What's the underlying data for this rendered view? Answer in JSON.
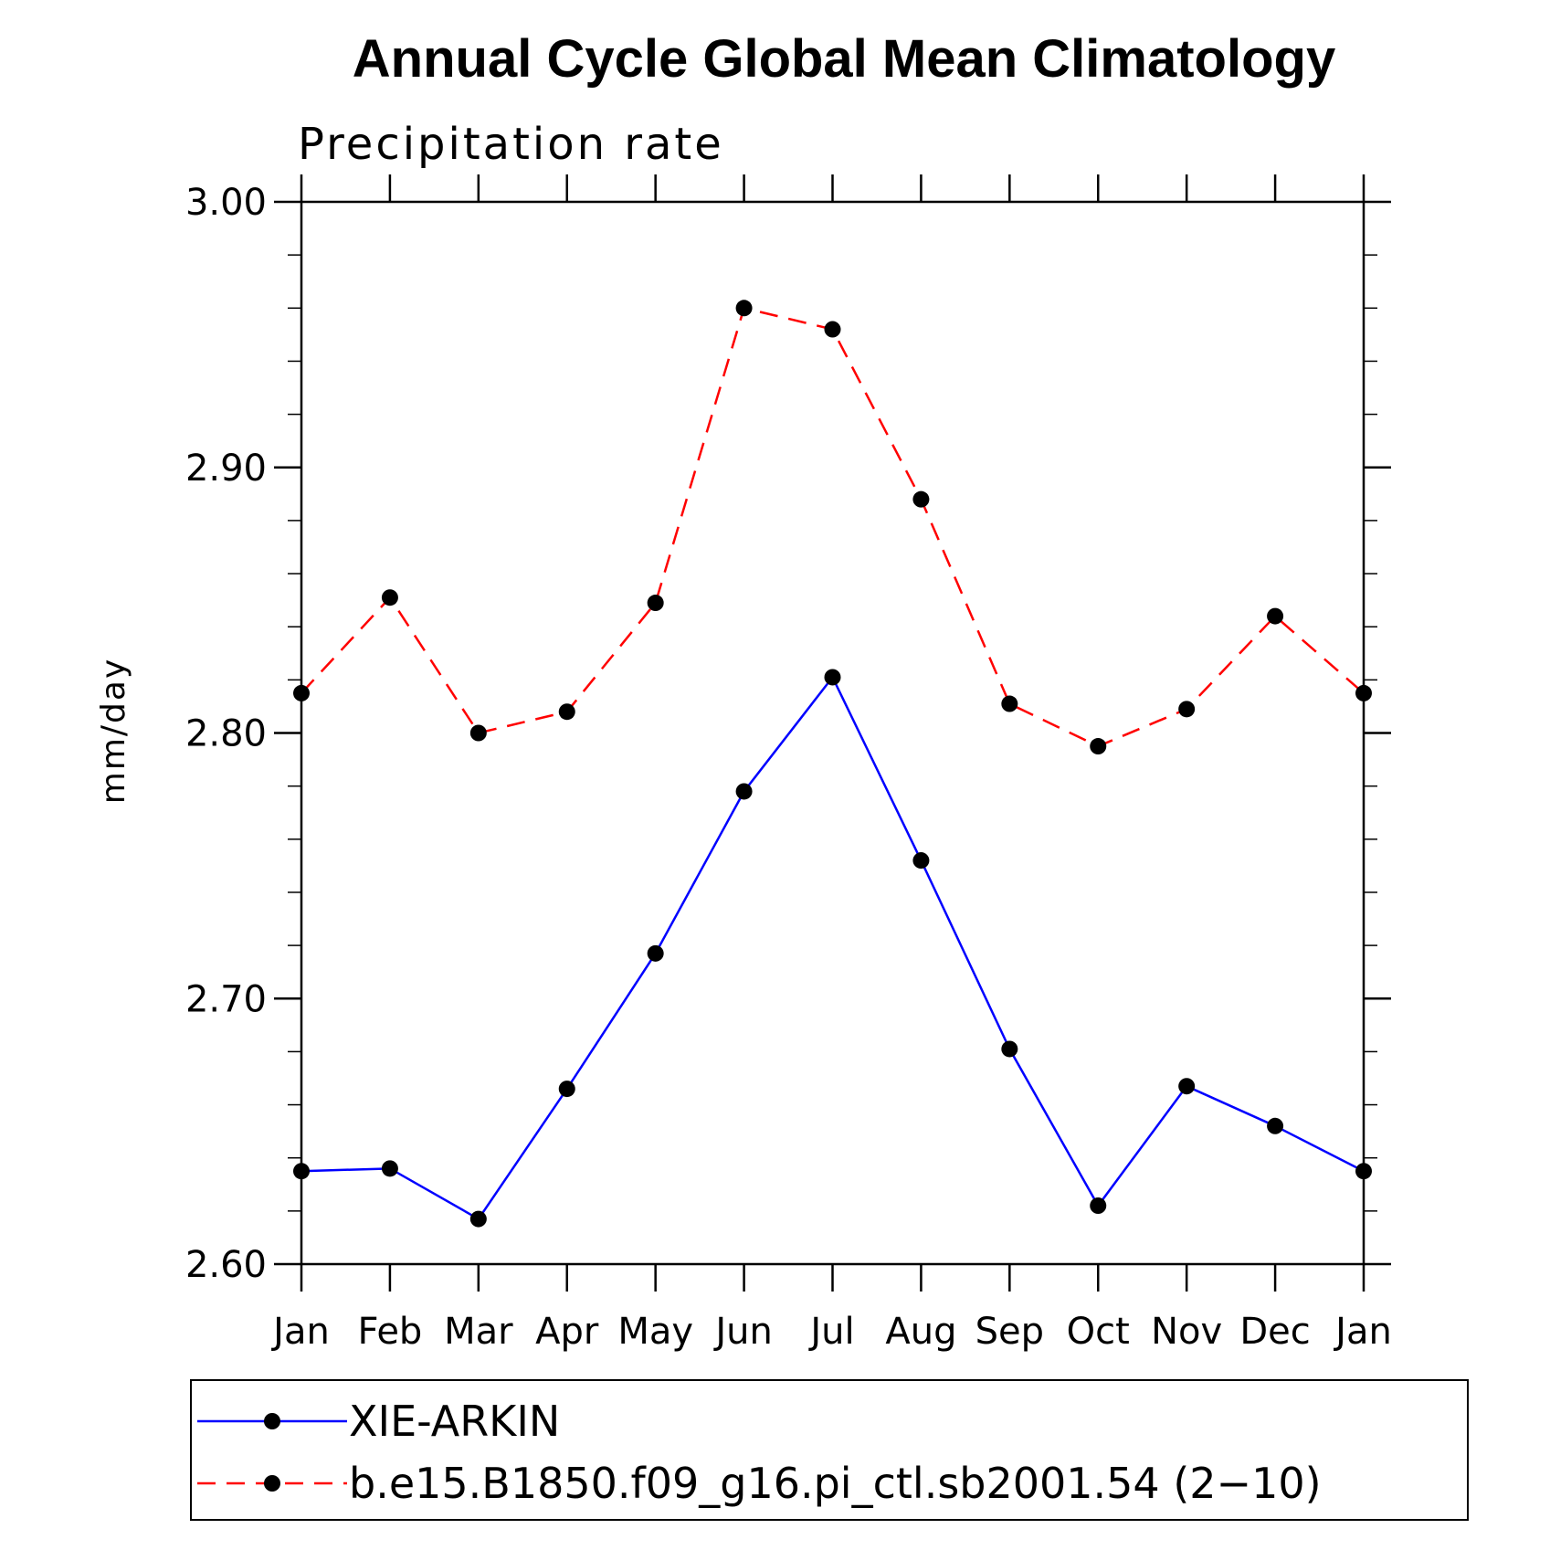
{
  "chart_data": {
    "type": "line",
    "title": "Annual Cycle Global Mean Climatology",
    "subtitle": "Precipitation rate",
    "xlabel": "",
    "ylabel": "mm/day",
    "categories": [
      "Jan",
      "Feb",
      "Mar",
      "Apr",
      "May",
      "Jun",
      "Jul",
      "Aug",
      "Sep",
      "Oct",
      "Nov",
      "Dec",
      "Jan"
    ],
    "ylim": [
      2.6,
      3.0
    ],
    "yticks": [
      "3.00",
      "2.90",
      "2.80",
      "2.70",
      "2.60"
    ],
    "ytick_values": [
      3.0,
      2.9,
      2.8,
      2.7,
      2.6
    ],
    "yminor_step": 0.02,
    "series": [
      {
        "name": "XIE-ARKIN",
        "color": "#0000ff",
        "dash": "solid",
        "marker": "filled-circle",
        "values": [
          2.635,
          2.636,
          2.617,
          2.666,
          2.717,
          2.778,
          2.821,
          2.752,
          2.681,
          2.622,
          2.667,
          2.652,
          2.635
        ]
      },
      {
        "name": "b.e15.B1850.f09_g16.pi_ctl.sb2001.54 (2-10)",
        "color": "#ff0000",
        "dash": "dashed",
        "marker": "filled-circle",
        "values": [
          2.815,
          2.851,
          2.8,
          2.808,
          2.849,
          2.96,
          2.952,
          2.888,
          2.811,
          2.795,
          2.809,
          2.844,
          2.815
        ]
      }
    ],
    "legend": {
      "entries": [
        "XIE-ARKIN",
        "b.e15.B1850.f09_g16.pi_ctl.sb2001.54 (2−10)"
      ],
      "position": "bottom"
    }
  }
}
